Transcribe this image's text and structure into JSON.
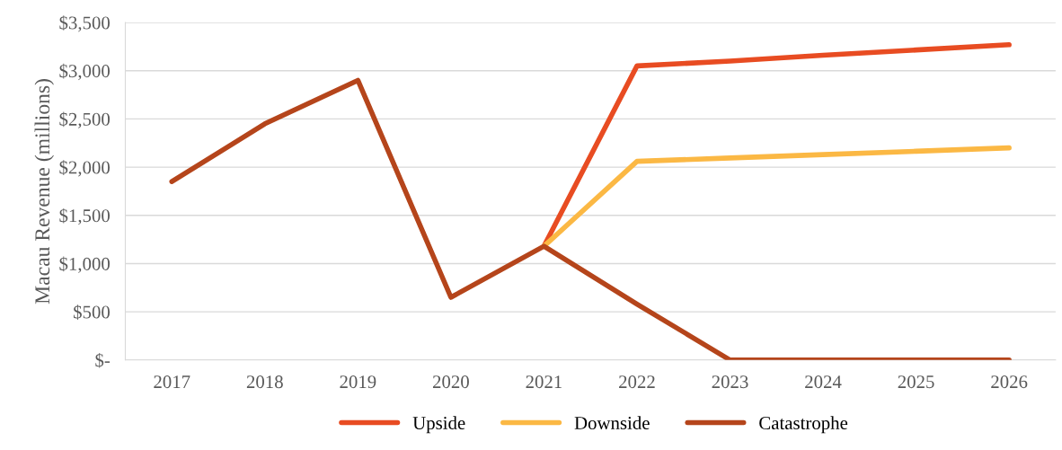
{
  "chart_data": {
    "type": "line",
    "ylabel": "Macau Revenue (millions)",
    "categories": [
      "2017",
      "2018",
      "2019",
      "2020",
      "2021",
      "2022",
      "2023",
      "2024",
      "2025",
      "2026"
    ],
    "series": [
      {
        "name": "Upside",
        "color": "#e84c22",
        "values": [
          null,
          null,
          null,
          null,
          1180,
          3050,
          3100,
          3160,
          3215,
          3270
        ]
      },
      {
        "name": "Downside",
        "color": "#fbb844",
        "values": [
          null,
          null,
          null,
          null,
          1180,
          2060,
          2095,
          2130,
          2165,
          2200
        ]
      },
      {
        "name": "Catastrophe",
        "color": "#b5451b",
        "values": [
          1850,
          2450,
          2900,
          650,
          1180,
          580,
          0,
          0,
          0,
          0
        ]
      }
    ],
    "ylim": [
      0,
      3500
    ],
    "yticks": [
      {
        "value": 0,
        "label": "$-"
      },
      {
        "value": 500,
        "label": "$500"
      },
      {
        "value": 1000,
        "label": "$1,000"
      },
      {
        "value": 1500,
        "label": "$1,500"
      },
      {
        "value": 2000,
        "label": "$2,000"
      },
      {
        "value": 2500,
        "label": "$2,500"
      },
      {
        "value": 3000,
        "label": "$3,000"
      },
      {
        "value": 3500,
        "label": "$3,500"
      }
    ],
    "grid": "y",
    "legend": "bottom",
    "marker": "none",
    "line_style": "solid"
  }
}
